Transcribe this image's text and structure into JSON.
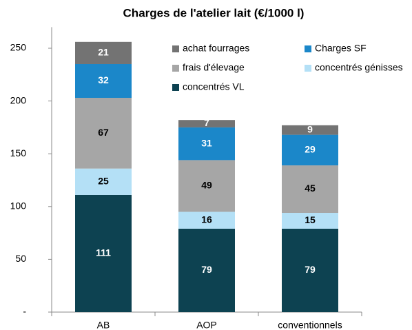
{
  "chart_data": {
    "type": "stacked_bar",
    "title": "Charges de l'atelier lait (€/1000 l)",
    "categories": [
      "AB",
      "AOP",
      "conventionnels"
    ],
    "series": [
      {
        "name": "concentrés VL",
        "color": "#0d4251",
        "values": [
          111,
          79,
          79
        ]
      },
      {
        "name": "concentrés génisses",
        "color": "#b4e0f6",
        "values": [
          25,
          16,
          15
        ]
      },
      {
        "name": "frais d'élevage",
        "color": "#a6a6a6",
        "values": [
          67,
          49,
          45
        ]
      },
      {
        "name": "Charges SF",
        "color": "#1b87c9",
        "values": [
          32,
          31,
          29
        ]
      },
      {
        "name": "achat fourrages",
        "color": "#737373",
        "values": [
          21,
          7,
          9
        ]
      }
    ],
    "ylim": [
      0,
      270
    ],
    "yticks": [
      {
        "value": 0,
        "label": "-"
      },
      50,
      100,
      150,
      200,
      250
    ]
  }
}
